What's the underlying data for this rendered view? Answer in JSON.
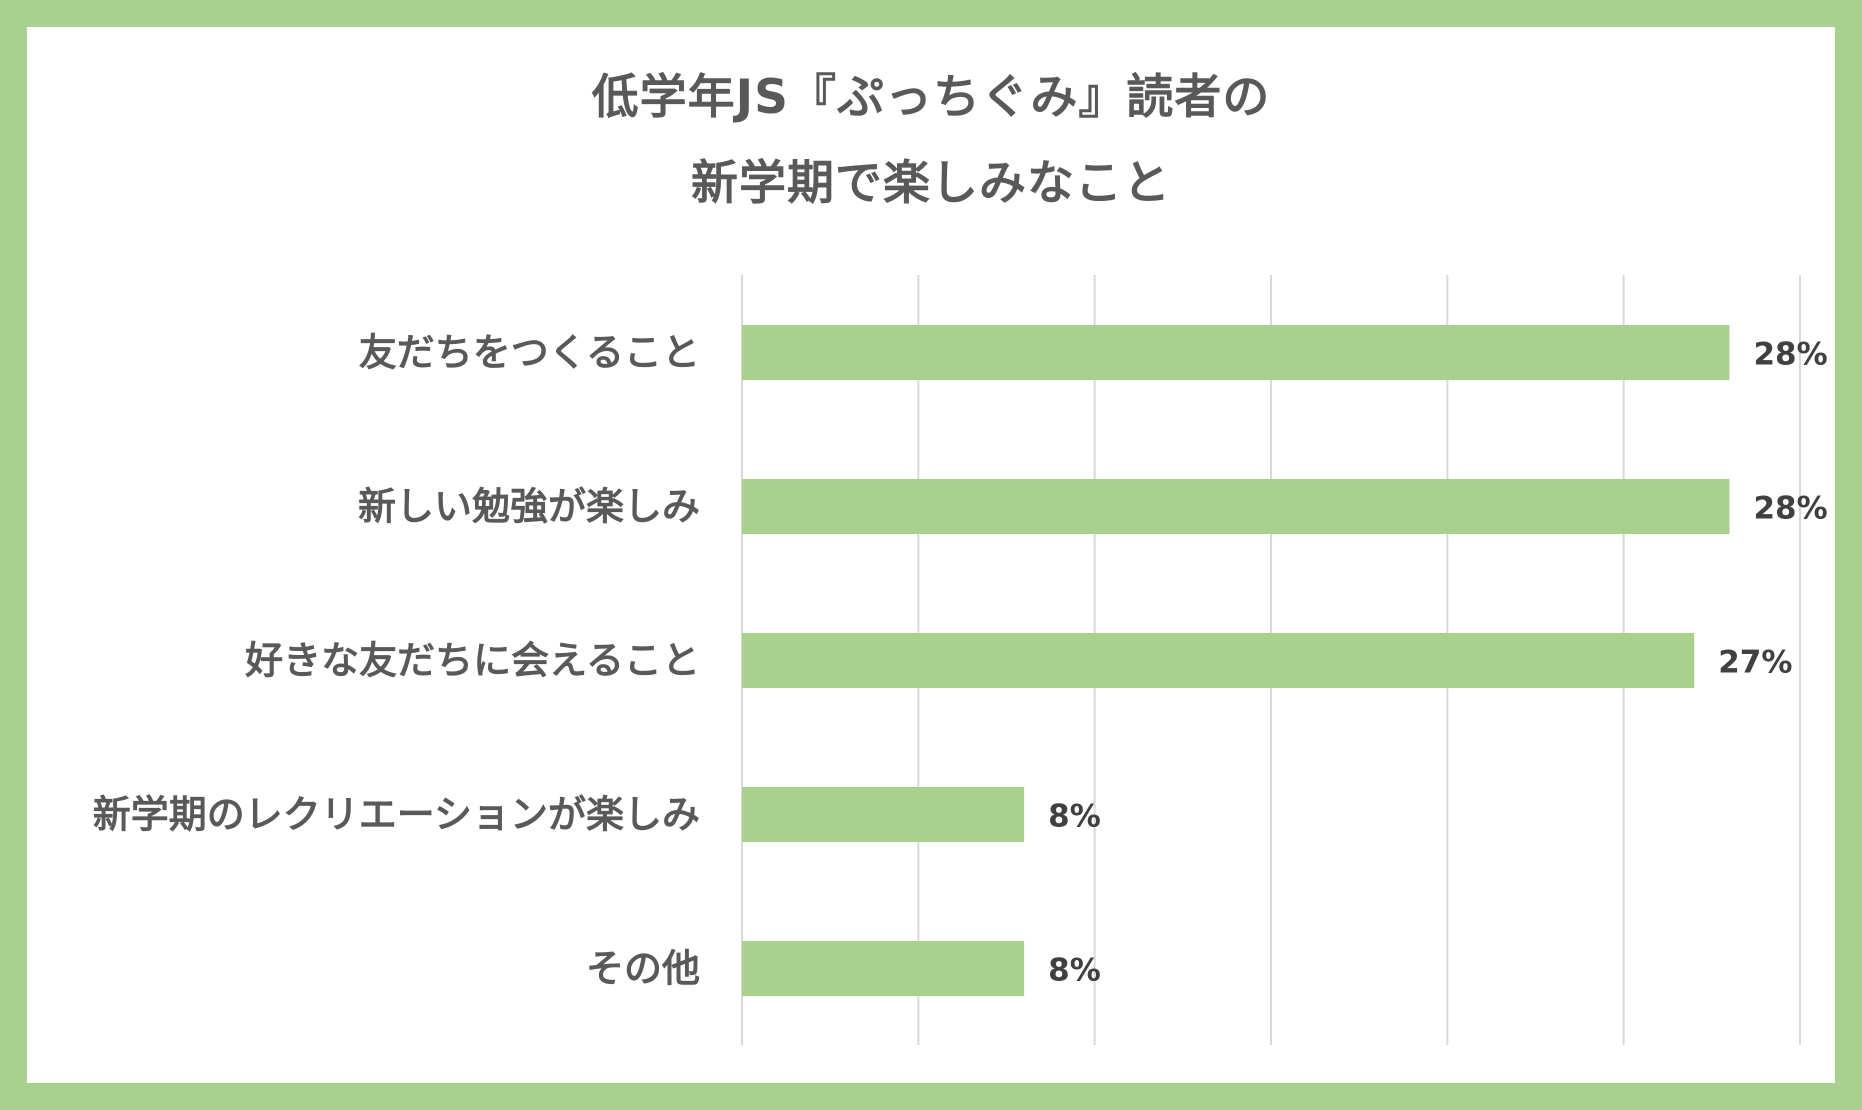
{
  "colors": {
    "frame": "#a8d08e",
    "bar": "#a9d18e",
    "grid": "#d9d9d9",
    "title_text": "#595959",
    "label_text": "#595959",
    "value_text": "#404040"
  },
  "chart_data": {
    "type": "bar",
    "orientation": "horizontal",
    "title_line1": "低学年JS『ぷっちぐみ』読者の",
    "title_line2": "新学期で楽しみなこと",
    "categories": [
      "友だちをつくること",
      "新しい勉強が楽しみ",
      "好きな友だちに会えること",
      "新学期のレクリエーションが楽しみ",
      "その他"
    ],
    "values": [
      28,
      28,
      27,
      8,
      8
    ],
    "value_labels": [
      "28%",
      "28%",
      "27%",
      "8%",
      "8%"
    ],
    "xlim": [
      0,
      30
    ],
    "x_gridline_step": 5,
    "grid": true,
    "legend": "none"
  }
}
